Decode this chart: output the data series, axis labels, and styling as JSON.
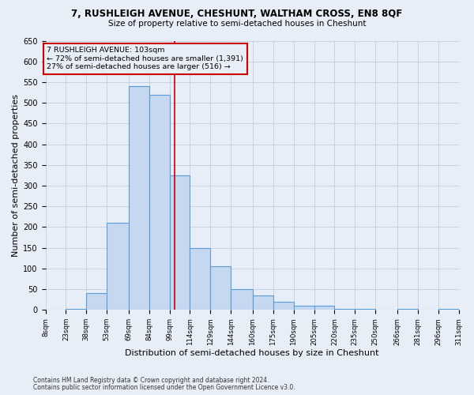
{
  "title1": "7, RUSHLEIGH AVENUE, CHESHUNT, WALTHAM CROSS, EN8 8QF",
  "title2": "Size of property relative to semi-detached houses in Cheshunt",
  "xlabel": "Distribution of semi-detached houses by size in Cheshunt",
  "ylabel": "Number of semi-detached properties",
  "footnote1": "Contains HM Land Registry data © Crown copyright and database right 2024.",
  "footnote2": "Contains public sector information licensed under the Open Government Licence v3.0.",
  "annotation_line1": "7 RUSHLEIGH AVENUE: 103sqm",
  "annotation_line2": "← 72% of semi-detached houses are smaller (1,391)",
  "annotation_line3": "27% of semi-detached houses are larger (516) →",
  "bins": [
    8,
    23,
    38,
    53,
    69,
    84,
    99,
    114,
    129,
    144,
    160,
    175,
    190,
    205,
    220,
    235,
    250,
    266,
    281,
    296,
    311
  ],
  "counts": [
    1,
    2,
    40,
    210,
    540,
    520,
    325,
    150,
    105,
    50,
    35,
    20,
    10,
    10,
    2,
    2,
    0,
    2,
    0,
    2
  ],
  "bar_color": "#c5d8f0",
  "bar_edge_color": "#5b9bd5",
  "vline_color": "#cc0000",
  "vline_x": 103,
  "annotation_box_color": "#cc0000",
  "background_color": "#e8eef8",
  "ylim": [
    0,
    650
  ],
  "yticks": [
    0,
    50,
    100,
    150,
    200,
    250,
    300,
    350,
    400,
    450,
    500,
    550,
    600,
    650
  ]
}
